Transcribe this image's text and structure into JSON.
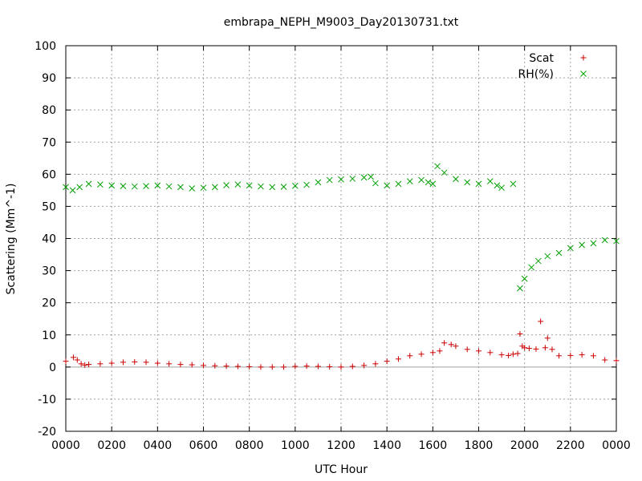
{
  "chart_data": {
    "type": "scatter",
    "title": "embrapa_NEPH_M9003_Day20130731.txt",
    "xlabel": "UTC Hour",
    "ylabel": "Scattering (Mm^-1)",
    "xlim": [
      0,
      24
    ],
    "ylim": [
      -20,
      100
    ],
    "x_tick_labels": [
      "0000",
      "0200",
      "0400",
      "0600",
      "0800",
      "1000",
      "1200",
      "1400",
      "1600",
      "1800",
      "2000",
      "2200",
      "0000"
    ],
    "y_ticks": [
      -20,
      -10,
      0,
      10,
      20,
      30,
      40,
      50,
      60,
      70,
      80,
      90,
      100
    ],
    "grid": true,
    "legend_position": "top-right",
    "series": [
      {
        "name": "Scat",
        "marker": "plus",
        "color": "#cc0000",
        "x": [
          0.0,
          0.33,
          0.5,
          0.67,
          0.83,
          1.0,
          1.5,
          2.0,
          2.5,
          3.0,
          3.5,
          4.0,
          4.5,
          5.0,
          5.5,
          6.0,
          6.5,
          7.0,
          7.5,
          8.0,
          8.5,
          9.0,
          9.5,
          10.0,
          10.5,
          11.0,
          11.5,
          12.0,
          12.5,
          13.0,
          13.5,
          14.0,
          14.5,
          15.0,
          15.5,
          16.0,
          16.3,
          16.5,
          16.8,
          17.0,
          17.5,
          18.0,
          18.5,
          19.0,
          19.3,
          19.5,
          19.7,
          19.8,
          19.9,
          20.0,
          20.2,
          20.5,
          20.7,
          20.9,
          21.0,
          21.2,
          21.5,
          22.0,
          22.5,
          23.0,
          23.5,
          24.0
        ],
        "y": [
          1.8,
          3.0,
          2.2,
          1.0,
          0.6,
          0.8,
          1.0,
          1.2,
          1.5,
          1.6,
          1.5,
          1.2,
          1.0,
          0.8,
          0.7,
          0.5,
          0.4,
          0.3,
          0.2,
          0.1,
          0.0,
          0.0,
          0.0,
          0.2,
          0.3,
          0.2,
          0.1,
          0.0,
          0.2,
          0.5,
          1.0,
          1.8,
          2.5,
          3.5,
          4.0,
          4.5,
          5.0,
          7.5,
          7.0,
          6.5,
          5.5,
          5.0,
          4.5,
          3.8,
          3.6,
          4.0,
          4.2,
          10.3,
          6.5,
          6.0,
          5.8,
          5.6,
          14.2,
          6.0,
          9.0,
          5.5,
          3.5,
          3.6,
          3.8,
          3.5,
          2.2,
          2.0
        ]
      },
      {
        "name": "RH(%)",
        "marker": "cross",
        "color": "#00a000",
        "x": [
          0.0,
          0.3,
          0.6,
          1.0,
          1.5,
          2.0,
          2.5,
          3.0,
          3.5,
          4.0,
          4.5,
          5.0,
          5.5,
          6.0,
          6.5,
          7.0,
          7.5,
          8.0,
          8.5,
          9.0,
          9.5,
          10.0,
          10.5,
          11.0,
          11.5,
          12.0,
          12.5,
          13.0,
          13.3,
          13.5,
          14.0,
          14.5,
          15.0,
          15.5,
          15.8,
          16.0,
          16.2,
          16.5,
          17.0,
          17.5,
          18.0,
          18.5,
          18.8,
          19.0,
          19.5,
          19.8,
          20.0,
          20.3,
          20.6,
          21.0,
          21.5,
          22.0,
          22.5,
          23.0,
          23.5,
          24.0
        ],
        "y": [
          56,
          55,
          56,
          57,
          56.8,
          56.5,
          56.3,
          56.2,
          56.3,
          56.5,
          56.2,
          56,
          55.6,
          55.8,
          56,
          56.6,
          56.8,
          56.5,
          56.2,
          56,
          56.1,
          56.4,
          56.7,
          57.5,
          58.2,
          58.4,
          58.6,
          59.0,
          59.2,
          57.2,
          56.5,
          57.0,
          57.8,
          58.2,
          57.5,
          57.0,
          62.5,
          60.5,
          58.5,
          57.5,
          57.0,
          57.8,
          56.5,
          55.8,
          57.0,
          24.5,
          27.5,
          31.0,
          33.0,
          34.5,
          35.5,
          37.0,
          38.0,
          38.5,
          39.5,
          39.2
        ]
      }
    ]
  }
}
